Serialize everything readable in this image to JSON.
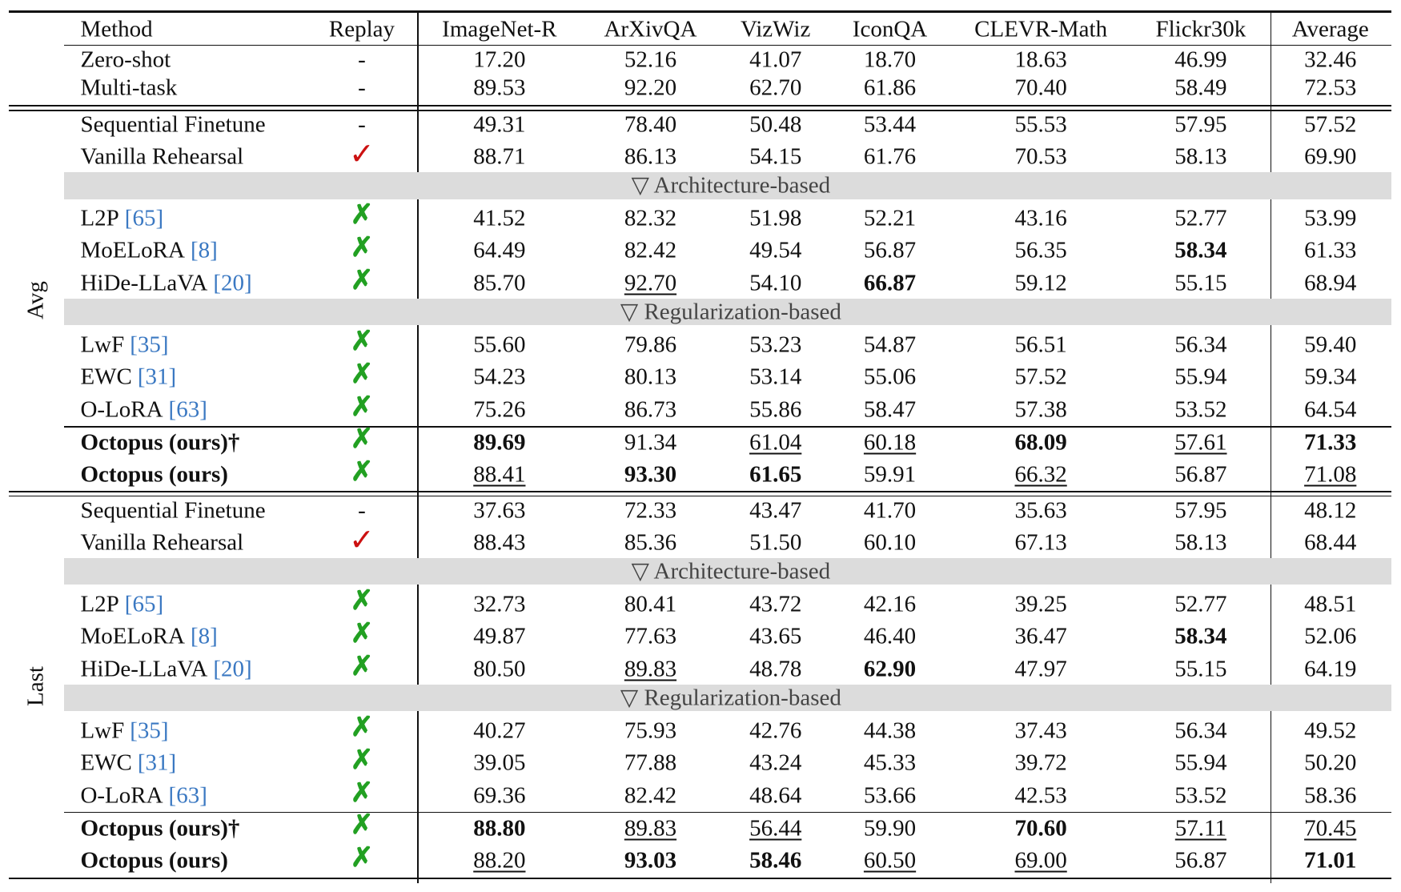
{
  "header": [
    "Method",
    "Replay",
    "ImageNet-R",
    "ArXivQA",
    "VizWiz",
    "IconQA",
    "CLEVR-Math",
    "Flickr30k",
    "Average"
  ],
  "baselines": [
    {
      "method": "Zero-shot",
      "replay": "-",
      "values": [
        "17.20",
        "52.16",
        "41.07",
        "18.70",
        "18.63",
        "46.99",
        "32.46"
      ]
    },
    {
      "method": "Multi-task",
      "replay": "-",
      "values": [
        "89.53",
        "92.20",
        "62.70",
        "61.86",
        "70.40",
        "58.49",
        "72.53"
      ]
    }
  ],
  "sections": [
    {
      "label": "Avg",
      "rows": [
        {
          "method": "Sequential Finetune",
          "replay": "-",
          "values": [
            "49.31",
            "78.40",
            "50.48",
            "53.44",
            "55.53",
            "57.95",
            "57.52"
          ]
        },
        {
          "method": "Vanilla Rehearsal",
          "replay": "✓",
          "values": [
            "88.71",
            "86.13",
            "54.15",
            "61.76",
            "70.53",
            "58.13",
            "69.90"
          ]
        }
      ],
      "groups": [
        {
          "title": "▽ Architecture-based",
          "rows": [
            {
              "method": "L2P",
              "ref": "[65]",
              "replay": "✗",
              "values": [
                "41.52",
                "82.32",
                "51.98",
                "52.21",
                "43.16",
                "52.77",
                "53.99"
              ]
            },
            {
              "method": "MoELoRA",
              "ref": "[8]",
              "replay": "✗",
              "values": [
                "64.49",
                "82.42",
                "49.54",
                "56.87",
                "56.35",
                "58.34",
                "61.33"
              ],
              "bold_cells": [
                5
              ]
            },
            {
              "method": "HiDe-LLaVA",
              "ref": "[20]",
              "replay": "✗",
              "values": [
                "85.70",
                "92.70",
                "54.10",
                "66.87",
                "59.12",
                "55.15",
                "68.94"
              ],
              "bold_cells": [
                3
              ],
              "underline_cells": [
                1
              ]
            }
          ]
        },
        {
          "title": "▽ Regularization-based",
          "rows": [
            {
              "method": "LwF",
              "ref": "[35]",
              "replay": "✗",
              "values": [
                "55.60",
                "79.86",
                "53.23",
                "54.87",
                "56.51",
                "56.34",
                "59.40"
              ]
            },
            {
              "method": "EWC",
              "ref": "[31]",
              "replay": "✗",
              "values": [
                "54.23",
                "80.13",
                "53.14",
                "55.06",
                "57.52",
                "55.94",
                "59.34"
              ]
            },
            {
              "method": "O-LoRA",
              "ref": "[63]",
              "replay": "✗",
              "values": [
                "75.26",
                "86.73",
                "55.86",
                "58.47",
                "57.38",
                "53.52",
                "64.54"
              ]
            }
          ]
        }
      ],
      "ours": [
        {
          "method": "Octopus (ours)†",
          "bold": true,
          "replay": "✗",
          "values": [
            "89.69",
            "91.34",
            "61.04",
            "60.18",
            "68.09",
            "57.61",
            "71.33"
          ],
          "bold_cells": [
            0,
            4,
            6
          ],
          "underline_cells": [
            2,
            3,
            5
          ]
        },
        {
          "method": "Octopus (ours)",
          "bold": true,
          "replay": "✗",
          "values": [
            "88.41",
            "93.30",
            "61.65",
            "59.91",
            "66.32",
            "56.87",
            "71.08"
          ],
          "bold_cells": [
            1,
            2
          ],
          "underline_cells": [
            0,
            4,
            6
          ]
        }
      ]
    },
    {
      "label": "Last",
      "rows": [
        {
          "method": "Sequential Finetune",
          "replay": "-",
          "values": [
            "37.63",
            "72.33",
            "43.47",
            "41.70",
            "35.63",
            "57.95",
            "48.12"
          ]
        },
        {
          "method": "Vanilla Rehearsal",
          "replay": "✓",
          "values": [
            "88.43",
            "85.36",
            "51.50",
            "60.10",
            "67.13",
            "58.13",
            "68.44"
          ]
        }
      ],
      "groups": [
        {
          "title": "▽ Architecture-based",
          "rows": [
            {
              "method": "L2P",
              "ref": "[65]",
              "replay": "✗",
              "values": [
                "32.73",
                "80.41",
                "43.72",
                "42.16",
                "39.25",
                "52.77",
                "48.51"
              ]
            },
            {
              "method": "MoELoRA",
              "ref": "[8]",
              "replay": "✗",
              "values": [
                "49.87",
                "77.63",
                "43.65",
                "46.40",
                "36.47",
                "58.34",
                "52.06"
              ],
              "bold_cells": [
                5
              ]
            },
            {
              "method": "HiDe-LLaVA",
              "ref": "[20]",
              "replay": "✗",
              "values": [
                "80.50",
                "89.83",
                "48.78",
                "62.90",
                "47.97",
                "55.15",
                "64.19"
              ],
              "bold_cells": [
                3
              ],
              "underline_cells": [
                1
              ]
            }
          ]
        },
        {
          "title": "▽ Regularization-based",
          "rows": [
            {
              "method": "LwF",
              "ref": "[35]",
              "replay": "✗",
              "values": [
                "40.27",
                "75.93",
                "42.76",
                "44.38",
                "37.43",
                "56.34",
                "49.52"
              ]
            },
            {
              "method": "EWC",
              "ref": "[31]",
              "replay": "✗",
              "values": [
                "39.05",
                "77.88",
                "43.24",
                "45.33",
                "39.72",
                "55.94",
                "50.20"
              ]
            },
            {
              "method": "O-LoRA",
              "ref": "[63]",
              "replay": "✗",
              "values": [
                "69.36",
                "82.42",
                "48.64",
                "53.66",
                "42.53",
                "53.52",
                "58.36"
              ]
            }
          ]
        }
      ],
      "ours": [
        {
          "method": "Octopus (ours)†",
          "bold": true,
          "replay": "✗",
          "values": [
            "88.80",
            "89.83",
            "56.44",
            "59.90",
            "70.60",
            "57.11",
            "70.45"
          ],
          "bold_cells": [
            0,
            4
          ],
          "underline_cells": [
            1,
            2,
            5,
            6
          ]
        },
        {
          "method": "Octopus (ours)",
          "bold": true,
          "replay": "✗",
          "values": [
            "88.20",
            "93.03",
            "58.46",
            "60.50",
            "69.00",
            "56.87",
            "71.01"
          ],
          "bold_cells": [
            1,
            2,
            6
          ],
          "underline_cells": [
            0,
            3,
            4
          ]
        }
      ]
    }
  ]
}
